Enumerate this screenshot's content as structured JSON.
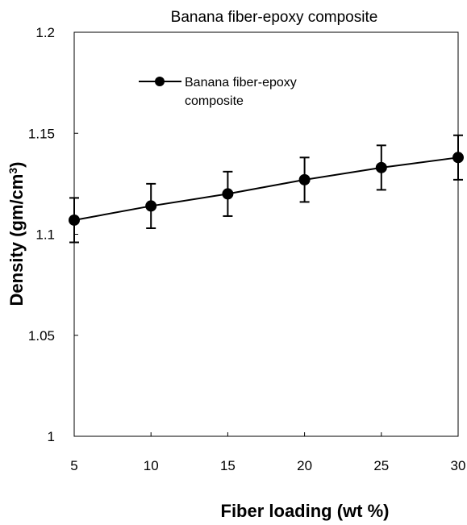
{
  "chart_data": {
    "type": "line",
    "title": "Banana fiber-epoxy composite",
    "xlabel": "Fiber loading (wt %)",
    "ylabel": "Density (gm/cm",
    "ylabel_sup": "3",
    "ylabel_end": ")",
    "xlim": [
      5,
      30
    ],
    "ylim": [
      1,
      1.2
    ],
    "x_ticks": [
      "5",
      "10",
      "15",
      "20",
      "25",
      "30"
    ],
    "y_ticks": [
      "1",
      "1.05",
      "1.1",
      "1.15",
      "1.2"
    ],
    "x_tick_values": [
      5,
      10,
      15,
      20,
      25,
      30
    ],
    "y_tick_values": [
      1,
      1.05,
      1.1,
      1.15,
      1.2
    ],
    "grid": false,
    "legend_position": "top-left",
    "legend_lines": [
      "Banana fiber-epoxy",
      "composite"
    ],
    "series": [
      {
        "name": "Banana fiber-epoxy composite",
        "color": "#000000",
        "marker": "circle",
        "x": [
          5,
          10,
          15,
          20,
          25,
          30
        ],
        "y": [
          1.107,
          1.114,
          1.12,
          1.127,
          1.133,
          1.138
        ],
        "error": [
          0.011,
          0.011,
          0.011,
          0.011,
          0.011,
          0.011
        ]
      }
    ]
  }
}
